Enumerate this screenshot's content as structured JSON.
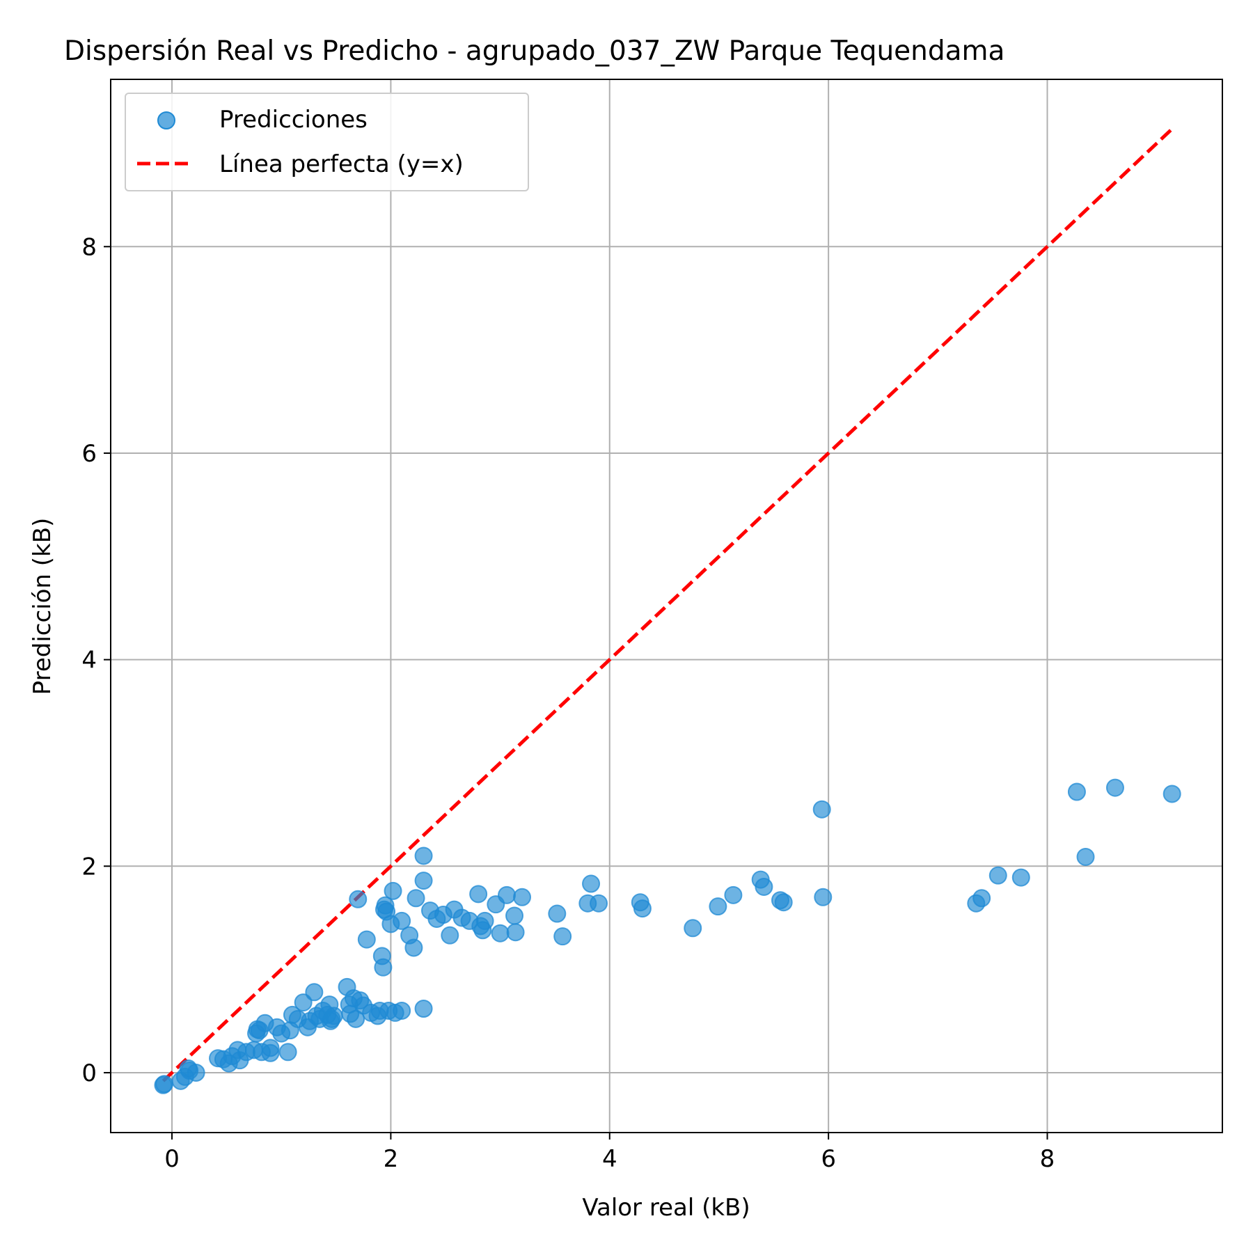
{
  "chart_data": {
    "type": "scatter",
    "title": "Dispersión Real vs Predicho - agrupado_037_ZW Parque Tequendama",
    "xlabel": "Valor real (kB)",
    "ylabel": "Predicción (kB)",
    "xlim": [
      -0.56,
      9.6
    ],
    "ylim": [
      -0.58,
      9.62
    ],
    "xticks": [
      0,
      2,
      4,
      6,
      8
    ],
    "yticks": [
      0,
      2,
      4,
      6,
      8
    ],
    "grid": true,
    "legend_position": "upper-left",
    "series": [
      {
        "name": "Predicciones",
        "kind": "scatter",
        "color": "#1f8ad4",
        "points": [
          [
            -0.08,
            -0.12
          ],
          [
            -0.07,
            -0.11
          ],
          [
            0.08,
            -0.08
          ],
          [
            0.12,
            -0.04
          ],
          [
            0.16,
            0.02
          ],
          [
            0.15,
            0.04
          ],
          [
            0.22,
            0.0
          ],
          [
            0.42,
            0.14
          ],
          [
            0.47,
            0.13
          ],
          [
            0.52,
            0.09
          ],
          [
            0.55,
            0.16
          ],
          [
            0.6,
            0.22
          ],
          [
            0.62,
            0.12
          ],
          [
            0.68,
            0.2
          ],
          [
            0.75,
            0.22
          ],
          [
            0.77,
            0.38
          ],
          [
            0.78,
            0.42
          ],
          [
            0.8,
            0.41
          ],
          [
            0.82,
            0.2
          ],
          [
            0.85,
            0.48
          ],
          [
            0.9,
            0.19
          ],
          [
            0.9,
            0.24
          ],
          [
            0.96,
            0.44
          ],
          [
            1.0,
            0.38
          ],
          [
            1.06,
            0.2
          ],
          [
            1.08,
            0.41
          ],
          [
            1.1,
            0.56
          ],
          [
            1.15,
            0.52
          ],
          [
            1.2,
            0.68
          ],
          [
            1.24,
            0.44
          ],
          [
            1.26,
            0.5
          ],
          [
            1.3,
            0.78
          ],
          [
            1.32,
            0.55
          ],
          [
            1.35,
            0.52
          ],
          [
            1.38,
            0.6
          ],
          [
            1.42,
            0.56
          ],
          [
            1.44,
            0.66
          ],
          [
            1.45,
            0.5
          ],
          [
            1.46,
            0.52
          ],
          [
            1.48,
            0.55
          ],
          [
            1.6,
            0.83
          ],
          [
            1.62,
            0.66
          ],
          [
            1.63,
            0.57
          ],
          [
            1.66,
            0.72
          ],
          [
            1.68,
            0.52
          ],
          [
            1.7,
            1.68
          ],
          [
            1.72,
            0.7
          ],
          [
            1.75,
            0.65
          ],
          [
            1.78,
            1.29
          ],
          [
            1.82,
            0.58
          ],
          [
            1.88,
            0.55
          ],
          [
            1.9,
            0.6
          ],
          [
            1.92,
            1.13
          ],
          [
            1.93,
            1.02
          ],
          [
            1.94,
            1.58
          ],
          [
            1.95,
            1.62
          ],
          [
            1.96,
            1.56
          ],
          [
            1.98,
            0.6
          ],
          [
            2.0,
            1.44
          ],
          [
            2.02,
            1.76
          ],
          [
            2.04,
            0.58
          ],
          [
            2.1,
            0.6
          ],
          [
            2.1,
            1.47
          ],
          [
            2.17,
            1.33
          ],
          [
            2.21,
            1.21
          ],
          [
            2.23,
            1.69
          ],
          [
            2.3,
            2.1
          ],
          [
            2.3,
            1.86
          ],
          [
            2.3,
            0.62
          ],
          [
            2.36,
            1.57
          ],
          [
            2.42,
            1.49
          ],
          [
            2.48,
            1.53
          ],
          [
            2.54,
            1.33
          ],
          [
            2.58,
            1.58
          ],
          [
            2.65,
            1.5
          ],
          [
            2.72,
            1.47
          ],
          [
            2.8,
            1.73
          ],
          [
            2.82,
            1.42
          ],
          [
            2.84,
            1.38
          ],
          [
            2.86,
            1.47
          ],
          [
            2.96,
            1.63
          ],
          [
            3.0,
            1.35
          ],
          [
            3.06,
            1.72
          ],
          [
            3.13,
            1.52
          ],
          [
            3.14,
            1.36
          ],
          [
            3.2,
            1.7
          ],
          [
            3.52,
            1.54
          ],
          [
            3.57,
            1.32
          ],
          [
            3.8,
            1.64
          ],
          [
            3.83,
            1.83
          ],
          [
            3.9,
            1.64
          ],
          [
            4.28,
            1.65
          ],
          [
            4.3,
            1.59
          ],
          [
            4.76,
            1.4
          ],
          [
            4.99,
            1.61
          ],
          [
            5.13,
            1.72
          ],
          [
            5.38,
            1.87
          ],
          [
            5.41,
            1.8
          ],
          [
            5.56,
            1.67
          ],
          [
            5.59,
            1.65
          ],
          [
            5.94,
            2.55
          ],
          [
            5.95,
            1.7
          ],
          [
            7.35,
            1.64
          ],
          [
            7.4,
            1.69
          ],
          [
            7.55,
            1.91
          ],
          [
            7.76,
            1.89
          ],
          [
            8.27,
            2.72
          ],
          [
            8.35,
            2.09
          ],
          [
            8.62,
            2.76
          ],
          [
            9.14,
            2.7
          ]
        ]
      },
      {
        "name": "Línea perfecta (y=x)",
        "kind": "line",
        "style": "dashed",
        "color": "#ff0000",
        "points": [
          [
            -0.08,
            -0.08
          ],
          [
            9.14,
            9.14
          ]
        ]
      }
    ]
  }
}
